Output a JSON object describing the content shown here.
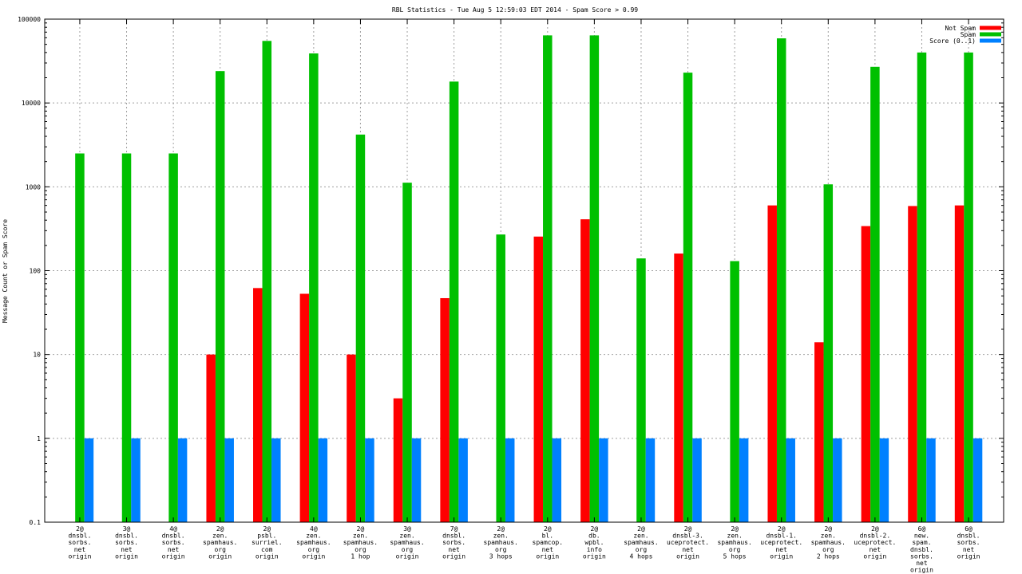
{
  "chart_data": {
    "type": "bar",
    "title": "RBL Statistics - Tue Aug  5 12:59:03 EDT 2014 - Spam Score > 0.99",
    "ylabel": "Message Count or Spam Score",
    "xlabel": "",
    "yscale": "log",
    "ylim": [
      0.1,
      100000
    ],
    "yticks": [
      "0.1",
      "1",
      "10",
      "100",
      "1000",
      "10000",
      "100000"
    ],
    "grid": true,
    "legend_position": "top-right",
    "categories": [
      [
        "2@",
        "dnsbl.",
        "sorbs.",
        "net",
        "origin"
      ],
      [
        "3@",
        "dnsbl.",
        "sorbs.",
        "net",
        "origin"
      ],
      [
        "4@",
        "dnsbl.",
        "sorbs.",
        "net",
        "origin"
      ],
      [
        "2@",
        "zen.",
        "spamhaus.",
        "org",
        "origin"
      ],
      [
        "2@",
        "psbl.",
        "surriel.",
        "com",
        "origin"
      ],
      [
        "4@",
        "zen.",
        "spamhaus.",
        "org",
        "origin"
      ],
      [
        "2@",
        "zen.",
        "spamhaus.",
        "org",
        "1 hop"
      ],
      [
        "3@",
        "zen.",
        "spamhaus.",
        "org",
        "origin"
      ],
      [
        "7@",
        "dnsbl.",
        "sorbs.",
        "net",
        "origin"
      ],
      [
        "2@",
        "zen.",
        "spamhaus.",
        "org",
        "3 hops"
      ],
      [
        "2@",
        "bl.",
        "spamcop.",
        "net",
        "origin"
      ],
      [
        "2@",
        "db.",
        "wpbl.",
        "info",
        "origin"
      ],
      [
        "2@",
        "zen.",
        "spamhaus.",
        "org",
        "4 hops"
      ],
      [
        "2@",
        "dnsbl-3.",
        "uceprotect.",
        "net",
        "origin"
      ],
      [
        "2@",
        "zen.",
        "spamhaus.",
        "org",
        "5 hops"
      ],
      [
        "2@",
        "dnsbl-1.",
        "uceprotect.",
        "net",
        "origin"
      ],
      [
        "2@",
        "zen.",
        "spamhaus.",
        "org",
        "2 hops"
      ],
      [
        "2@",
        "dnsbl-2.",
        "uceprotect.",
        "net",
        "origin"
      ],
      [
        "6@",
        "new.",
        "spam.",
        "dnsbl.",
        "sorbs.",
        "net",
        "origin"
      ],
      [
        "6@",
        "dnsbl.",
        "sorbs.",
        "net",
        "origin"
      ]
    ],
    "series": [
      {
        "name": "Not Spam",
        "color": "#ff0000",
        "values": [
          0,
          0,
          0,
          10,
          62,
          53,
          10,
          3,
          47,
          0,
          255,
          410,
          0,
          160,
          0,
          600,
          14,
          340,
          590,
          600
        ]
      },
      {
        "name": "Spam",
        "color": "#00c000",
        "values": [
          2500,
          2500,
          2500,
          24000,
          55000,
          39000,
          4200,
          1120,
          18000,
          270,
          64000,
          64000,
          140,
          23000,
          130,
          59000,
          1070,
          27000,
          40000,
          40000
        ]
      },
      {
        "name": "Score (0..1)",
        "color": "#0080ff",
        "values": [
          1,
          1,
          1,
          1,
          1,
          1,
          1,
          1,
          1,
          1,
          1,
          1,
          1,
          1,
          1,
          1,
          1,
          1,
          1,
          1
        ]
      }
    ]
  }
}
